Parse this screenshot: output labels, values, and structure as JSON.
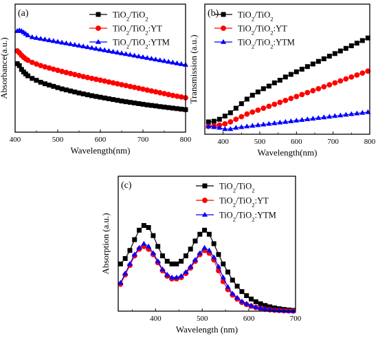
{
  "chart_data": [
    {
      "panel": "(a)",
      "type": "line",
      "xlabel": "Wavelength(nm)",
      "ylabel": "Absorbance(a.u.)",
      "xlim": [
        400,
        800
      ],
      "ylim": [
        0,
        1
      ],
      "xticks": [
        400,
        500,
        600,
        700,
        800
      ],
      "y_tick_labels": false,
      "legend_position": "top-right",
      "colors": [
        "#000000",
        "#ff0000",
        "#0000ff"
      ],
      "markers": [
        "square",
        "circle",
        "triangle"
      ],
      "x": [
        405,
        410,
        415,
        420,
        425,
        430,
        440,
        450,
        460,
        470,
        480,
        490,
        500,
        510,
        520,
        530,
        540,
        550,
        560,
        570,
        580,
        590,
        600,
        610,
        620,
        630,
        640,
        650,
        660,
        670,
        680,
        690,
        700,
        710,
        720,
        730,
        740,
        750,
        760,
        770,
        780,
        790,
        800
      ],
      "series": [
        {
          "name": "TiO2/TiO2",
          "values": [
            0.535,
            0.52,
            0.49,
            0.47,
            0.455,
            0.44,
            0.42,
            0.405,
            0.39,
            0.378,
            0.368,
            0.358,
            0.348,
            0.338,
            0.33,
            0.322,
            0.314,
            0.306,
            0.299,
            0.292,
            0.285,
            0.279,
            0.273,
            0.267,
            0.261,
            0.255,
            0.249,
            0.243,
            0.238,
            0.233,
            0.228,
            0.223,
            0.218,
            0.213,
            0.209,
            0.205,
            0.2,
            0.196,
            0.192,
            0.188,
            0.184,
            0.18,
            0.176
          ]
        },
        {
          "name": "TiO2/TiO2:YT",
          "values": [
            0.635,
            0.62,
            0.6,
            0.585,
            0.572,
            0.562,
            0.545,
            0.532,
            0.52,
            0.51,
            0.501,
            0.492,
            0.483,
            0.474,
            0.466,
            0.458,
            0.45,
            0.442,
            0.434,
            0.427,
            0.42,
            0.413,
            0.406,
            0.399,
            0.392,
            0.385,
            0.378,
            0.371,
            0.364,
            0.357,
            0.35,
            0.343,
            0.336,
            0.329,
            0.322,
            0.315,
            0.308,
            0.301,
            0.294,
            0.287,
            0.281,
            0.275,
            0.269
          ]
        },
        {
          "name": "TiO2/TiO2:YTM",
          "values": [
            0.79,
            0.795,
            0.79,
            0.78,
            0.768,
            0.756,
            0.742,
            0.736,
            0.73,
            0.724,
            0.718,
            0.712,
            0.706,
            0.7,
            0.694,
            0.688,
            0.682,
            0.676,
            0.67,
            0.664,
            0.658,
            0.652,
            0.646,
            0.64,
            0.634,
            0.628,
            0.622,
            0.616,
            0.61,
            0.604,
            0.598,
            0.592,
            0.586,
            0.58,
            0.574,
            0.568,
            0.562,
            0.556,
            0.55,
            0.544,
            0.538,
            0.532,
            0.526
          ]
        }
      ]
    },
    {
      "panel": "(b)",
      "type": "line",
      "xlabel": "Wavelength(nm)",
      "ylabel": "Transmission (a.u.)",
      "xlim": [
        350,
        800
      ],
      "ylim": [
        0,
        1
      ],
      "xticks": [
        400,
        500,
        600,
        700,
        800
      ],
      "y_tick_labels": false,
      "legend_position": "top-left",
      "colors": [
        "#000000",
        "#ff0000",
        "#0000ff"
      ],
      "markers": [
        "square",
        "circle",
        "triangle"
      ],
      "x": [
        360,
        375,
        390,
        405,
        420,
        435,
        450,
        465,
        480,
        495,
        510,
        525,
        540,
        555,
        570,
        585,
        600,
        615,
        630,
        645,
        660,
        675,
        690,
        705,
        720,
        735,
        750,
        765,
        780,
        795
      ],
      "series": [
        {
          "name": "TiO2/TiO2",
          "values": [
            0.095,
            0.1,
            0.115,
            0.14,
            0.165,
            0.2,
            0.235,
            0.27,
            0.3,
            0.325,
            0.35,
            0.37,
            0.395,
            0.415,
            0.44,
            0.46,
            0.48,
            0.5,
            0.52,
            0.54,
            0.56,
            0.58,
            0.6,
            0.62,
            0.64,
            0.66,
            0.68,
            0.7,
            0.72,
            0.74
          ]
        },
        {
          "name": "TiO2/TiO2:YT",
          "values": [
            0.06,
            0.065,
            0.07,
            0.08,
            0.095,
            0.115,
            0.135,
            0.155,
            0.17,
            0.185,
            0.2,
            0.215,
            0.23,
            0.245,
            0.26,
            0.275,
            0.29,
            0.305,
            0.32,
            0.335,
            0.35,
            0.365,
            0.38,
            0.395,
            0.41,
            0.425,
            0.44,
            0.455,
            0.47,
            0.485
          ]
        },
        {
          "name": "TiO2/TiO2:YTM",
          "values": [
            0.06,
            0.055,
            0.05,
            0.04,
            0.04,
            0.05,
            0.055,
            0.06,
            0.065,
            0.07,
            0.075,
            0.08,
            0.085,
            0.09,
            0.095,
            0.1,
            0.105,
            0.11,
            0.115,
            0.12,
            0.125,
            0.13,
            0.135,
            0.14,
            0.145,
            0.15,
            0.155,
            0.16,
            0.165,
            0.17
          ]
        }
      ]
    },
    {
      "panel": "(c)",
      "type": "line",
      "xlabel": "Wavelength (nm)",
      "ylabel": "Absorption (a.u.)",
      "xlim": [
        320,
        700
      ],
      "ylim": [
        0,
        1
      ],
      "xticks": [
        400,
        500,
        600,
        700
      ],
      "y_tick_labels": false,
      "legend_position": "top-right",
      "colors": [
        "#000000",
        "#ff0000",
        "#0000ff"
      ],
      "markers": [
        "square",
        "circle",
        "triangle"
      ],
      "x": [
        325,
        335,
        345,
        355,
        365,
        375,
        385,
        395,
        405,
        415,
        425,
        435,
        445,
        455,
        465,
        475,
        485,
        495,
        505,
        515,
        525,
        535,
        545,
        555,
        565,
        575,
        585,
        595,
        605,
        615,
        625,
        635,
        645,
        655,
        665,
        675,
        685,
        695
      ],
      "series": [
        {
          "name": "TiO2/TiO2",
          "values": [
            0.35,
            0.39,
            0.45,
            0.53,
            0.6,
            0.635,
            0.62,
            0.56,
            0.48,
            0.41,
            0.37,
            0.35,
            0.35,
            0.37,
            0.41,
            0.46,
            0.52,
            0.57,
            0.6,
            0.57,
            0.5,
            0.42,
            0.35,
            0.29,
            0.23,
            0.185,
            0.145,
            0.115,
            0.09,
            0.07,
            0.055,
            0.042,
            0.032,
            0.024,
            0.018,
            0.013,
            0.009,
            0.006
          ]
        },
        {
          "name": "TiO2/TiO2:YT",
          "values": [
            0.2,
            0.27,
            0.34,
            0.41,
            0.46,
            0.48,
            0.46,
            0.42,
            0.36,
            0.3,
            0.26,
            0.24,
            0.24,
            0.25,
            0.28,
            0.32,
            0.37,
            0.42,
            0.45,
            0.43,
            0.38,
            0.3,
            0.22,
            0.16,
            0.12,
            0.09,
            0.065,
            0.05,
            0.037,
            0.027,
            0.019,
            0.014,
            0.01,
            0.007,
            0.005,
            0.003,
            0.002,
            0.001
          ]
        },
        {
          "name": "TiO2/TiO2:YTM",
          "values": [
            0.21,
            0.28,
            0.35,
            0.42,
            0.47,
            0.5,
            0.48,
            0.43,
            0.37,
            0.31,
            0.27,
            0.25,
            0.25,
            0.26,
            0.29,
            0.33,
            0.38,
            0.43,
            0.47,
            0.45,
            0.4,
            0.33,
            0.25,
            0.18,
            0.13,
            0.1,
            0.072,
            0.055,
            0.041,
            0.03,
            0.022,
            0.016,
            0.011,
            0.008,
            0.006,
            0.004,
            0.002,
            0.001
          ]
        }
      ]
    }
  ]
}
